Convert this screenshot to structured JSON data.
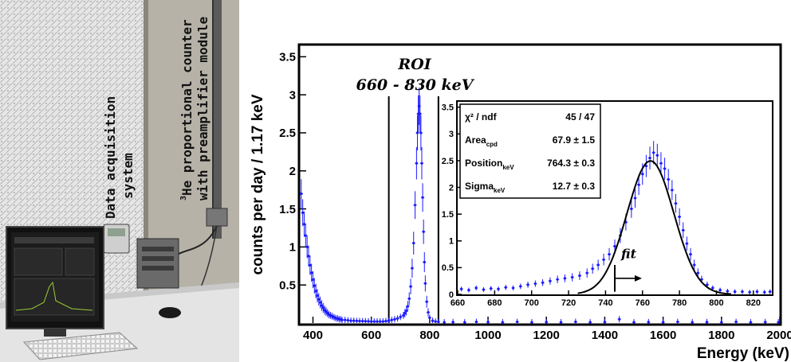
{
  "photo": {
    "label_daq_line1": "Data acquisition",
    "label_daq_line2": "system",
    "label_he_line1_sup": "3",
    "label_he_line1": "He proportional counter",
    "label_he_line2": "with preamplifier module"
  },
  "colors": {
    "data": "#1a1aff",
    "fit": "#000000",
    "frame": "#000000"
  },
  "chart_data": [
    {
      "type": "scatter",
      "name": "main",
      "ylabel": "counts per day / 1.17 keV",
      "xlabel": "Energy (keV)",
      "xlim": [
        355,
        2000
      ],
      "ylim": [
        0,
        3.65
      ],
      "xticks": [
        400,
        600,
        800,
        1000,
        1200,
        1400,
        1600,
        1800,
        2000
      ],
      "yticks": [
        0.5,
        1,
        1.5,
        2,
        2.5,
        3,
        3.5
      ],
      "roi_label": "ROI",
      "roi_range_label": "660 - 830 keV",
      "roi_lines": [
        660,
        830
      ],
      "points": [
        [
          360,
          1.7
        ],
        [
          365,
          1.45
        ],
        [
          370,
          1.3
        ],
        [
          375,
          1.15
        ],
        [
          380,
          1.0
        ],
        [
          385,
          0.88
        ],
        [
          390,
          0.76
        ],
        [
          395,
          0.66
        ],
        [
          400,
          0.57
        ],
        [
          405,
          0.49
        ],
        [
          410,
          0.42
        ],
        [
          415,
          0.36
        ],
        [
          420,
          0.31
        ],
        [
          425,
          0.27
        ],
        [
          430,
          0.23
        ],
        [
          435,
          0.2
        ],
        [
          440,
          0.17
        ],
        [
          445,
          0.15
        ],
        [
          450,
          0.13
        ],
        [
          455,
          0.11
        ],
        [
          460,
          0.1
        ],
        [
          465,
          0.09
        ],
        [
          470,
          0.08
        ],
        [
          475,
          0.07
        ],
        [
          480,
          0.06
        ],
        [
          485,
          0.06
        ],
        [
          490,
          0.05
        ],
        [
          495,
          0.05
        ],
        [
          500,
          0.04
        ],
        [
          510,
          0.04
        ],
        [
          520,
          0.035
        ],
        [
          530,
          0.03
        ],
        [
          540,
          0.03
        ],
        [
          550,
          0.028
        ],
        [
          560,
          0.026
        ],
        [
          570,
          0.025
        ],
        [
          580,
          0.024
        ],
        [
          590,
          0.022
        ],
        [
          600,
          0.02
        ],
        [
          610,
          0.02
        ],
        [
          620,
          0.02
        ],
        [
          630,
          0.02
        ],
        [
          640,
          0.02
        ],
        [
          650,
          0.025
        ],
        [
          660,
          0.03
        ],
        [
          670,
          0.04
        ],
        [
          680,
          0.05
        ],
        [
          690,
          0.06
        ],
        [
          700,
          0.08
        ],
        [
          710,
          0.1
        ],
        [
          715,
          0.13
        ],
        [
          720,
          0.16
        ],
        [
          725,
          0.22
        ],
        [
          730,
          0.32
        ],
        [
          735,
          0.48
        ],
        [
          740,
          0.72
        ],
        [
          745,
          1.05
        ],
        [
          750,
          1.55
        ],
        [
          755,
          2.1
        ],
        [
          758,
          2.5
        ],
        [
          761,
          2.75
        ],
        [
          764,
          2.85
        ],
        [
          767,
          2.75
        ],
        [
          770,
          2.5
        ],
        [
          773,
          2.1
        ],
        [
          776,
          1.65
        ],
        [
          779,
          1.2
        ],
        [
          782,
          0.8
        ],
        [
          785,
          0.52
        ],
        [
          790,
          0.28
        ],
        [
          795,
          0.14
        ],
        [
          800,
          0.07
        ],
        [
          810,
          0.03
        ],
        [
          820,
          0.02
        ],
        [
          830,
          0.015
        ],
        [
          850,
          0.01
        ],
        [
          880,
          0.012
        ],
        [
          920,
          0.01
        ],
        [
          960,
          0.015
        ],
        [
          1000,
          0.012
        ],
        [
          1050,
          0.01
        ],
        [
          1100,
          0.015
        ],
        [
          1150,
          0.01
        ],
        [
          1200,
          0.012
        ],
        [
          1250,
          0.01
        ],
        [
          1300,
          0.015
        ],
        [
          1350,
          0.01
        ],
        [
          1400,
          0.012
        ],
        [
          1450,
          0.05
        ],
        [
          1500,
          0.01
        ],
        [
          1550,
          0.012
        ],
        [
          1600,
          0.01
        ],
        [
          1650,
          0.015
        ],
        [
          1700,
          0.01
        ],
        [
          1750,
          0.012
        ],
        [
          1800,
          0.01
        ],
        [
          1850,
          0.015
        ],
        [
          1900,
          0.01
        ],
        [
          1950,
          0.012
        ],
        [
          1995,
          0.01
        ]
      ]
    },
    {
      "type": "scatter",
      "name": "inset",
      "xlim": [
        660,
        830
      ],
      "ylim": [
        0,
        3.6
      ],
      "xticks": [
        660,
        680,
        700,
        720,
        740,
        760,
        780,
        800,
        820
      ],
      "yticks": [
        0,
        0.5,
        1,
        1.5,
        2,
        2.5,
        3,
        3.5
      ],
      "fit_label": "fit",
      "fit_start": 745,
      "stats": [
        {
          "name": "χ² / ndf",
          "value": "45 / 47"
        },
        {
          "name_main": "Area",
          "name_sub": "cpd",
          "value": "67.9 ± 1.5"
        },
        {
          "name_main": "Position",
          "name_sub": "keV",
          "value": "764.3 ± 0.3"
        },
        {
          "name_main": "Sigma",
          "name_sub": "keV",
          "value": "12.7 ± 0.3"
        }
      ],
      "points": [
        [
          662,
          0.1
        ],
        [
          666,
          0.08
        ],
        [
          670,
          0.12
        ],
        [
          674,
          0.09
        ],
        [
          678,
          0.11
        ],
        [
          682,
          0.1
        ],
        [
          686,
          0.13
        ],
        [
          690,
          0.12
        ],
        [
          694,
          0.15
        ],
        [
          698,
          0.18
        ],
        [
          702,
          0.2
        ],
        [
          706,
          0.22
        ],
        [
          710,
          0.25
        ],
        [
          714,
          0.28
        ],
        [
          718,
          0.3
        ],
        [
          722,
          0.32
        ],
        [
          726,
          0.35
        ],
        [
          730,
          0.4
        ],
        [
          733,
          0.48
        ],
        [
          736,
          0.55
        ],
        [
          739,
          0.65
        ],
        [
          742,
          0.75
        ],
        [
          745,
          0.9
        ],
        [
          748,
          1.1
        ],
        [
          751,
          1.35
        ],
        [
          754,
          1.6
        ],
        [
          756,
          1.8
        ],
        [
          758,
          2.05
        ],
        [
          760,
          2.25
        ],
        [
          762,
          2.4
        ],
        [
          764,
          2.55
        ],
        [
          766,
          2.65
        ],
        [
          768,
          2.6
        ],
        [
          770,
          2.45
        ],
        [
          772,
          2.35
        ],
        [
          774,
          2.15
        ],
        [
          776,
          1.95
        ],
        [
          778,
          1.7
        ],
        [
          780,
          1.45
        ],
        [
          782,
          1.2
        ],
        [
          784,
          0.95
        ],
        [
          786,
          0.75
        ],
        [
          788,
          0.55
        ],
        [
          790,
          0.4
        ],
        [
          792,
          0.28
        ],
        [
          795,
          0.18
        ],
        [
          798,
          0.12
        ],
        [
          802,
          0.08
        ],
        [
          806,
          0.06
        ],
        [
          810,
          0.05
        ],
        [
          814,
          0.05
        ],
        [
          818,
          0.04
        ],
        [
          822,
          0.05
        ],
        [
          826,
          0.04
        ],
        [
          829,
          0.05
        ]
      ]
    }
  ]
}
